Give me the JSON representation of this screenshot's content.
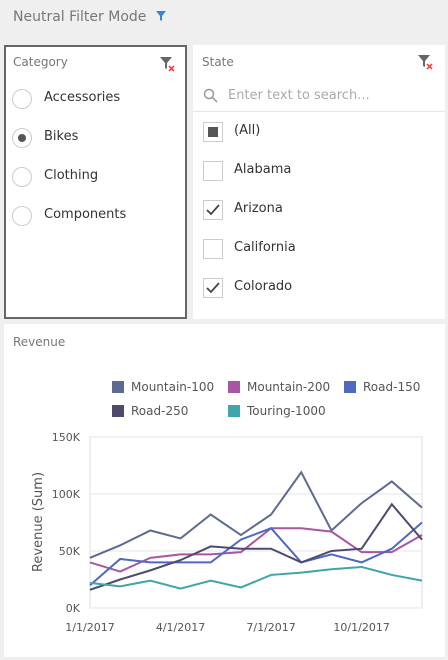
{
  "header": {
    "title": "Neutral Filter Mode"
  },
  "category_filter": {
    "title": "Category",
    "items": [
      "Accessories",
      "Bikes",
      "Clothing",
      "Components"
    ],
    "selected_index": 1
  },
  "state_filter": {
    "title": "State",
    "search_placeholder": "Enter text to search...",
    "items": [
      {
        "label": "(All)",
        "state": "indeterminate"
      },
      {
        "label": "Alabama",
        "state": "unchecked"
      },
      {
        "label": "Arizona",
        "state": "checked"
      },
      {
        "label": "California",
        "state": "unchecked"
      },
      {
        "label": "Colorado",
        "state": "checked"
      }
    ]
  },
  "chart_data": {
    "type": "line",
    "title": "Revenue",
    "y_label": "Revenue (Sum)",
    "categories": [
      "1/1/2017",
      null,
      null,
      "4/1/2017",
      null,
      null,
      "7/1/2017",
      null,
      null,
      "10/1/2017",
      null,
      null
    ],
    "ylim": [
      0,
      150000
    ],
    "yticks": [
      {
        "value": 0,
        "label": "0K"
      },
      {
        "value": 50000,
        "label": "50K"
      },
      {
        "value": 100000,
        "label": "100K"
      },
      {
        "value": 150000,
        "label": "150K"
      }
    ],
    "grid": true,
    "series": [
      {
        "name": "Mountain-100",
        "color": "#5d6b91",
        "values": [
          44000,
          55000,
          68000,
          61000,
          82000,
          64000,
          82000,
          119000,
          68000,
          92000,
          111000,
          88000
        ]
      },
      {
        "name": "Mountain-200",
        "color": "#a855a3",
        "values": [
          40000,
          32000,
          44000,
          47000,
          47000,
          49000,
          70000,
          70000,
          67000,
          49000,
          49000,
          64000
        ]
      },
      {
        "name": "Road-150",
        "color": "#4f68c2",
        "values": [
          20000,
          43000,
          40000,
          40000,
          40000,
          60000,
          70000,
          40000,
          47000,
          40000,
          52000,
          75000
        ]
      },
      {
        "name": "Road-250",
        "color": "#4d4a6e",
        "values": [
          16000,
          25000,
          33000,
          42000,
          54000,
          52000,
          52000,
          40000,
          50000,
          52000,
          91000,
          60000
        ]
      },
      {
        "name": "Touring-1000",
        "color": "#3fa5a8",
        "values": [
          22000,
          19000,
          24000,
          17000,
          24000,
          18000,
          29000,
          31000,
          34000,
          36000,
          29000,
          24000
        ]
      }
    ]
  }
}
